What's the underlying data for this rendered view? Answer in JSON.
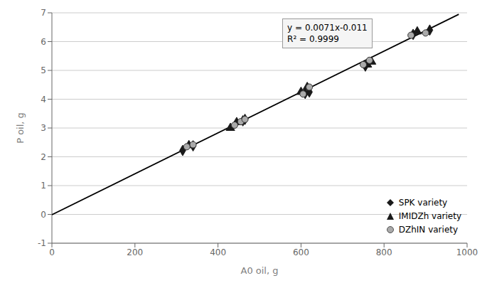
{
  "chart_data": {
    "type": "scatter",
    "xlabel": "A0 oil, g",
    "ylabel": "P oil, g",
    "annotations": [
      "y = 0.0071x-0.011",
      "R² = 0.9999"
    ],
    "xlim": [
      0,
      1000
    ],
    "ylim": [
      -1,
      7
    ],
    "xticks": [
      0,
      200,
      400,
      600,
      800,
      1000
    ],
    "yticks": [
      -1,
      0,
      1,
      2,
      3,
      4,
      5,
      6,
      7
    ],
    "grid": "y",
    "legend": "lower right",
    "series": [
      {
        "type": "line",
        "color": "#000000",
        "x": [
          0,
          980
        ],
        "values": [
          -0.011,
          6.947
        ]
      },
      {
        "name": "SPK variety",
        "type": "scatter",
        "marker": "diamond",
        "color": "#1a1a1a",
        "x": [
          315,
          340,
          460,
          465,
          610,
          620,
          755,
          870,
          910
        ],
        "values": [
          2.22,
          2.38,
          3.25,
          3.3,
          4.2,
          4.25,
          5.15,
          6.25,
          6.4
        ]
      },
      {
        "name": "IMIDZh variety",
        "type": "scatter",
        "marker": "triangle",
        "color": "#1a1a1a",
        "x": [
          330,
          430,
          445,
          600,
          615,
          760,
          770,
          880
        ],
        "values": [
          2.4,
          3.0,
          3.2,
          4.25,
          4.42,
          5.2,
          5.3,
          6.35
        ]
      },
      {
        "name": "DZhIN variety",
        "type": "scatter",
        "marker": "circle",
        "color": "#aaaaaa",
        "x": [
          325,
          340,
          440,
          455,
          465,
          605,
          620,
          750,
          765,
          865,
          900
        ],
        "values": [
          2.35,
          2.42,
          3.1,
          3.22,
          3.3,
          4.18,
          4.42,
          5.2,
          5.35,
          6.22,
          6.3
        ]
      }
    ]
  }
}
